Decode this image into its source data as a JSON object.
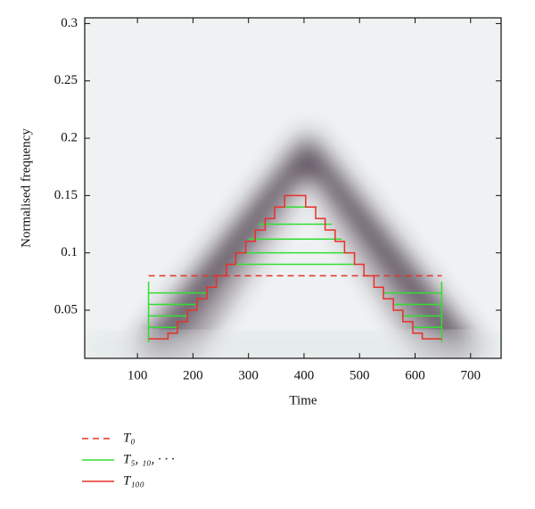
{
  "chart_data": {
    "type": "line",
    "xlabel": "Time",
    "ylabel": "Normalised frequency",
    "xlim": [
      5,
      755
    ],
    "ylim": [
      0.008,
      0.305
    ],
    "xticks": [
      100,
      200,
      300,
      400,
      500,
      600,
      700
    ],
    "yticks": [
      0.05,
      0.1,
      0.15,
      0.2,
      0.25,
      0.3
    ],
    "legend": "bottom",
    "series": [
      {
        "name": "T₀",
        "color": "#e8302a",
        "dash": true,
        "x": [
          120,
          648
        ],
        "values": [
          0.08,
          0.08
        ]
      },
      {
        "name": "T₅, ₁₀, · · ·",
        "color": "#33dd33",
        "dash": false,
        "x": [
          120,
          120,
          null,
          648,
          648,
          null,
          120,
          225,
          null,
          120,
          205,
          null,
          120,
          190,
          null,
          120,
          172,
          null,
          543,
          648,
          null,
          563,
          648,
          null,
          578,
          648,
          null,
          596,
          648,
          null,
          345,
          423,
          null,
          318,
          450,
          null,
          300,
          468,
          null,
          285,
          483,
          null,
          275,
          493
        ],
        "values": [
          0.022,
          0.075,
          null,
          0.022,
          0.075,
          null,
          0.065,
          0.065,
          null,
          0.055,
          0.055,
          null,
          0.045,
          0.045,
          null,
          0.035,
          0.035,
          null,
          0.065,
          0.065,
          null,
          0.055,
          0.055,
          null,
          0.045,
          0.045,
          null,
          0.035,
          0.035,
          null,
          0.14,
          0.14,
          null,
          0.125,
          0.125,
          null,
          0.112,
          0.112,
          null,
          0.1,
          0.1,
          null,
          0.09,
          0.09
        ]
      },
      {
        "name": "T₁₀₀",
        "color": "#e8302a",
        "dash": false,
        "x": [
          120,
          155,
          155,
          172,
          172,
          190,
          190,
          207,
          207,
          225,
          225,
          242,
          242,
          260,
          260,
          277,
          277,
          295,
          295,
          312,
          312,
          330,
          330,
          347,
          347,
          365,
          365,
          403,
          403,
          421,
          421,
          438,
          438,
          456,
          456,
          473,
          473,
          491,
          491,
          508,
          508,
          526,
          526,
          543,
          543,
          561,
          561,
          578,
          578,
          596,
          596,
          613,
          613,
          648
        ],
        "values": [
          0.025,
          0.025,
          0.03,
          0.03,
          0.04,
          0.04,
          0.05,
          0.05,
          0.06,
          0.06,
          0.07,
          0.07,
          0.08,
          0.08,
          0.09,
          0.09,
          0.1,
          0.1,
          0.11,
          0.11,
          0.12,
          0.12,
          0.13,
          0.13,
          0.14,
          0.14,
          0.15,
          0.15,
          0.14,
          0.14,
          0.13,
          0.13,
          0.12,
          0.12,
          0.11,
          0.11,
          0.1,
          0.1,
          0.09,
          0.09,
          0.08,
          0.08,
          0.07,
          0.07,
          0.06,
          0.06,
          0.05,
          0.05,
          0.04,
          0.04,
          0.03,
          0.03,
          0.025,
          0.025
        ]
      }
    ]
  }
}
